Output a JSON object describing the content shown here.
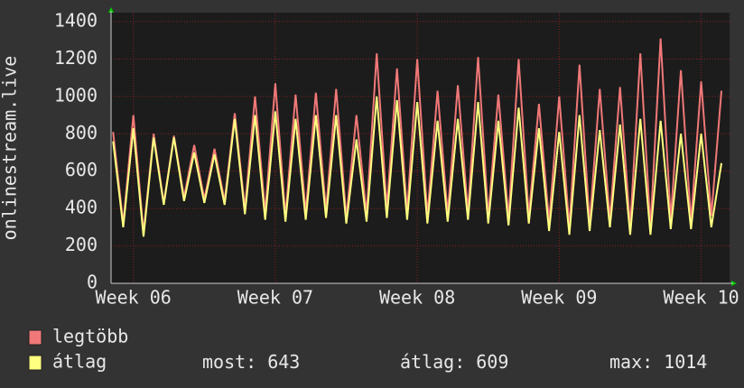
{
  "chart_data": {
    "type": "line",
    "y_label": "onlinestream.live",
    "x": [
      -1,
      -0.5,
      0,
      0.5,
      1,
      1.5,
      2,
      2.5,
      3,
      3.5,
      4,
      4.5,
      5,
      5.5,
      6,
      6.5,
      7,
      7.5,
      8,
      8.5,
      9,
      9.5,
      10,
      10.5,
      11,
      11.5,
      12,
      12.5,
      13,
      13.5,
      14,
      14.5,
      15,
      15.5,
      16,
      16.5,
      17,
      17.5,
      18,
      18.5,
      19,
      19.5,
      20,
      20.5,
      21,
      21.5,
      22,
      22.5,
      23,
      23.5,
      24,
      24.5,
      25,
      25.5,
      26,
      26.5,
      27,
      27.5,
      28,
      28.5,
      29
    ],
    "series": [
      {
        "name": "legtöbb",
        "color": "#f07878",
        "values": [
          810,
          320,
          900,
          270,
          800,
          430,
          790,
          460,
          740,
          450,
          720,
          440,
          910,
          400,
          1000,
          380,
          1070,
          360,
          1010,
          380,
          1020,
          390,
          1040,
          350,
          900,
          370,
          1230,
          400,
          1150,
          380,
          1200,
          360,
          1030,
          370,
          1060,
          380,
          1210,
          360,
          1010,
          350,
          1200,
          360,
          960,
          330,
          1000,
          300,
          1170,
          320,
          1040,
          340,
          1050,
          300,
          1230,
          300,
          1310,
          340,
          1140,
          330,
          1080,
          360,
          1030
        ]
      },
      {
        "name": "átlag",
        "color": "#ffff80",
        "values": [
          760,
          300,
          830,
          250,
          780,
          420,
          780,
          440,
          700,
          430,
          690,
          420,
          880,
          370,
          900,
          340,
          920,
          330,
          880,
          340,
          900,
          350,
          900,
          320,
          770,
          330,
          1000,
          350,
          980,
          340,
          970,
          320,
          870,
          330,
          880,
          340,
          970,
          320,
          870,
          310,
          940,
          320,
          830,
          280,
          810,
          260,
          900,
          280,
          820,
          300,
          850,
          260,
          880,
          260,
          870,
          290,
          800,
          290,
          800,
          300,
          643
        ]
      }
    ],
    "xlim": [
      -1.1,
      29.4
    ],
    "xticks": [
      {
        "value": 0,
        "label": "Week 06"
      },
      {
        "value": 7,
        "label": "Week 07"
      },
      {
        "value": 14,
        "label": "Week 08"
      },
      {
        "value": 21,
        "label": "Week 09"
      },
      {
        "value": 28,
        "label": "Week 10"
      }
    ],
    "ylim": [
      0,
      1400
    ],
    "yticks": [
      0,
      200,
      400,
      600,
      800,
      1000,
      1200,
      1400
    ],
    "grid": true,
    "stats": [
      {
        "label": "most:",
        "value": 643
      },
      {
        "label": "átlag:",
        "value": 609
      },
      {
        "label": "max:",
        "value": 1014
      }
    ]
  }
}
